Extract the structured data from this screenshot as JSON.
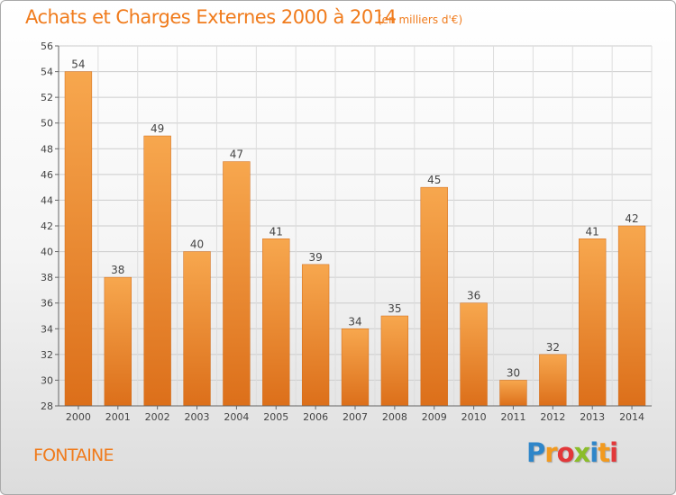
{
  "chart_data": {
    "type": "bar",
    "title": "Achats et Charges Externes 2000 à 2014",
    "subtitle": "(en milliers d'€)",
    "categories": [
      "2000",
      "2001",
      "2002",
      "2003",
      "2004",
      "2005",
      "2006",
      "2007",
      "2008",
      "2009",
      "2010",
      "2011",
      "2012",
      "2013",
      "2014"
    ],
    "values": [
      54,
      38,
      49,
      40,
      47,
      41,
      39,
      34,
      35,
      45,
      36,
      30,
      32,
      41,
      42
    ],
    "ylim": [
      28,
      56
    ],
    "yticks": [
      28,
      30,
      32,
      34,
      36,
      38,
      40,
      42,
      44,
      46,
      48,
      50,
      52,
      54,
      56
    ],
    "grid": true,
    "bar_color": "#f08c2a",
    "axis_text_color": "#444444"
  },
  "footer": {
    "city": "FONTAINE",
    "logo_letters": [
      "P",
      "r",
      "o",
      "x",
      "i",
      "t",
      "i"
    ],
    "logo_colors": [
      "#2f86c9",
      "#f29a1f",
      "#e2383a",
      "#8bbd2a"
    ]
  }
}
